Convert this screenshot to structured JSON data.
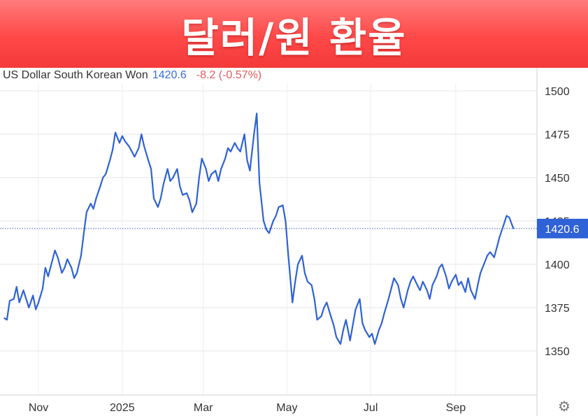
{
  "banner": {
    "title": "달러/원 환율"
  },
  "header": {
    "instrument": "US Dollar South Korean Won",
    "last_price": "1420.6",
    "change": "-8.2 (-0.57%)"
  },
  "colors": {
    "line": "#2f62d6",
    "banner": "#ff4f4f",
    "change_negative": "#e15a5a",
    "price_label_bg": "#2f62d6"
  },
  "settings": {
    "icon": "gear-icon",
    "glyph": "⚙"
  },
  "chart_data": {
    "type": "line",
    "title": "",
    "series": [
      {
        "name": "US Dollar South Korean Won",
        "points": [
          [
            "2024-10-07",
            1369
          ],
          [
            "2024-10-09",
            1368
          ],
          [
            "2024-10-11",
            1379
          ],
          [
            "2024-10-14",
            1380
          ],
          [
            "2024-10-16",
            1387
          ],
          [
            "2024-10-18",
            1378
          ],
          [
            "2024-10-21",
            1385
          ],
          [
            "2024-10-23",
            1380
          ],
          [
            "2024-10-25",
            1375
          ],
          [
            "2024-10-28",
            1382
          ],
          [
            "2024-10-30",
            1374
          ],
          [
            "2024-11-01",
            1378
          ],
          [
            "2024-11-04",
            1386
          ],
          [
            "2024-11-06",
            1398
          ],
          [
            "2024-11-08",
            1393
          ],
          [
            "2024-11-11",
            1402
          ],
          [
            "2024-11-13",
            1408
          ],
          [
            "2024-11-15",
            1404
          ],
          [
            "2024-11-18",
            1395
          ],
          [
            "2024-11-20",
            1398
          ],
          [
            "2024-11-22",
            1403
          ],
          [
            "2024-11-25",
            1398
          ],
          [
            "2024-11-27",
            1392
          ],
          [
            "2024-11-29",
            1395
          ],
          [
            "2024-12-02",
            1405
          ],
          [
            "2024-12-04",
            1418
          ],
          [
            "2024-12-06",
            1430
          ],
          [
            "2024-12-09",
            1435
          ],
          [
            "2024-12-11",
            1432
          ],
          [
            "2024-12-13",
            1438
          ],
          [
            "2024-12-16",
            1445
          ],
          [
            "2024-12-18",
            1450
          ],
          [
            "2024-12-20",
            1452
          ],
          [
            "2024-12-23",
            1460
          ],
          [
            "2024-12-25",
            1466
          ],
          [
            "2024-12-27",
            1476
          ],
          [
            "2024-12-30",
            1470
          ],
          [
            "2025-01-01",
            1474
          ],
          [
            "2025-01-03",
            1471
          ],
          [
            "2025-01-06",
            1468
          ],
          [
            "2025-01-08",
            1465
          ],
          [
            "2025-01-10",
            1462
          ],
          [
            "2025-01-13",
            1467
          ],
          [
            "2025-01-15",
            1475
          ],
          [
            "2025-01-17",
            1468
          ],
          [
            "2025-01-20",
            1460
          ],
          [
            "2025-01-22",
            1455
          ],
          [
            "2025-01-24",
            1438
          ],
          [
            "2025-01-27",
            1433
          ],
          [
            "2025-01-29",
            1438
          ],
          [
            "2025-01-31",
            1446
          ],
          [
            "2025-02-03",
            1455
          ],
          [
            "2025-02-05",
            1448
          ],
          [
            "2025-02-07",
            1450
          ],
          [
            "2025-02-10",
            1455
          ],
          [
            "2025-02-12",
            1445
          ],
          [
            "2025-02-14",
            1440
          ],
          [
            "2025-02-17",
            1441
          ],
          [
            "2025-02-19",
            1437
          ],
          [
            "2025-02-21",
            1430
          ],
          [
            "2025-02-24",
            1435
          ],
          [
            "2025-02-26",
            1450
          ],
          [
            "2025-02-28",
            1461
          ],
          [
            "2025-03-03",
            1455
          ],
          [
            "2025-03-05",
            1448
          ],
          [
            "2025-03-07",
            1452
          ],
          [
            "2025-03-10",
            1454
          ],
          [
            "2025-03-12",
            1448
          ],
          [
            "2025-03-14",
            1455
          ],
          [
            "2025-03-17",
            1461
          ],
          [
            "2025-03-19",
            1467
          ],
          [
            "2025-03-21",
            1465
          ],
          [
            "2025-03-24",
            1470
          ],
          [
            "2025-03-26",
            1467
          ],
          [
            "2025-03-28",
            1465
          ],
          [
            "2025-03-31",
            1475
          ],
          [
            "2025-04-02",
            1460
          ],
          [
            "2025-04-04",
            1454
          ],
          [
            "2025-04-07",
            1475
          ],
          [
            "2025-04-09",
            1487
          ],
          [
            "2025-04-11",
            1447
          ],
          [
            "2025-04-14",
            1425
          ],
          [
            "2025-04-16",
            1420
          ],
          [
            "2025-04-18",
            1418
          ],
          [
            "2025-04-21",
            1425
          ],
          [
            "2025-04-23",
            1428
          ],
          [
            "2025-04-25",
            1433
          ],
          [
            "2025-04-28",
            1434
          ],
          [
            "2025-04-30",
            1425
          ],
          [
            "2025-05-02",
            1405
          ],
          [
            "2025-05-05",
            1378
          ],
          [
            "2025-05-07",
            1390
          ],
          [
            "2025-05-09",
            1400
          ],
          [
            "2025-05-12",
            1405
          ],
          [
            "2025-05-14",
            1395
          ],
          [
            "2025-05-16",
            1390
          ],
          [
            "2025-05-19",
            1388
          ],
          [
            "2025-05-21",
            1380
          ],
          [
            "2025-05-23",
            1368
          ],
          [
            "2025-05-26",
            1370
          ],
          [
            "2025-05-28",
            1375
          ],
          [
            "2025-05-30",
            1378
          ],
          [
            "2025-06-02",
            1370
          ],
          [
            "2025-06-04",
            1365
          ],
          [
            "2025-06-06",
            1358
          ],
          [
            "2025-06-09",
            1354
          ],
          [
            "2025-06-11",
            1362
          ],
          [
            "2025-06-13",
            1368
          ],
          [
            "2025-06-16",
            1356
          ],
          [
            "2025-06-18",
            1365
          ],
          [
            "2025-06-20",
            1374
          ],
          [
            "2025-06-23",
            1380
          ],
          [
            "2025-06-25",
            1366
          ],
          [
            "2025-06-27",
            1362
          ],
          [
            "2025-06-30",
            1358
          ],
          [
            "2025-07-02",
            1360
          ],
          [
            "2025-07-04",
            1354
          ],
          [
            "2025-07-07",
            1362
          ],
          [
            "2025-07-09",
            1366
          ],
          [
            "2025-07-11",
            1372
          ],
          [
            "2025-07-14",
            1380
          ],
          [
            "2025-07-16",
            1386
          ],
          [
            "2025-07-18",
            1392
          ],
          [
            "2025-07-21",
            1388
          ],
          [
            "2025-07-23",
            1380
          ],
          [
            "2025-07-25",
            1375
          ],
          [
            "2025-07-28",
            1385
          ],
          [
            "2025-07-30",
            1390
          ],
          [
            "2025-08-01",
            1393
          ],
          [
            "2025-08-04",
            1388
          ],
          [
            "2025-08-06",
            1385
          ],
          [
            "2025-08-08",
            1390
          ],
          [
            "2025-08-11",
            1385
          ],
          [
            "2025-08-13",
            1380
          ],
          [
            "2025-08-15",
            1388
          ],
          [
            "2025-08-18",
            1393
          ],
          [
            "2025-08-20",
            1398
          ],
          [
            "2025-08-22",
            1400
          ],
          [
            "2025-08-25",
            1393
          ],
          [
            "2025-08-27",
            1386
          ],
          [
            "2025-08-29",
            1390
          ],
          [
            "2025-09-01",
            1394
          ],
          [
            "2025-09-03",
            1388
          ],
          [
            "2025-09-05",
            1390
          ],
          [
            "2025-09-08",
            1384
          ],
          [
            "2025-09-10",
            1392
          ],
          [
            "2025-09-12",
            1385
          ],
          [
            "2025-09-15",
            1380
          ],
          [
            "2025-09-17",
            1388
          ],
          [
            "2025-09-19",
            1395
          ],
          [
            "2025-09-22",
            1401
          ],
          [
            "2025-09-24",
            1405
          ],
          [
            "2025-09-26",
            1407
          ],
          [
            "2025-09-29",
            1404
          ],
          [
            "2025-10-01",
            1410
          ],
          [
            "2025-10-03",
            1416
          ],
          [
            "2025-10-06",
            1423
          ],
          [
            "2025-10-08",
            1428
          ],
          [
            "2025-10-10",
            1427
          ],
          [
            "2025-10-13",
            1420.6
          ]
        ]
      }
    ],
    "x_tick_labels": [
      "Nov",
      "2025",
      "Mar",
      "May",
      "Jul",
      "Sep"
    ],
    "x_tick_dates": [
      "2024-11-01",
      "2025-01-01",
      "2025-03-01",
      "2025-05-01",
      "2025-07-01",
      "2025-09-01"
    ],
    "y_ticks": [
      1350,
      1375,
      1400,
      1425,
      1450,
      1475,
      1500
    ],
    "ylim": [
      1330,
      1510
    ],
    "xlim": [
      "2024-10-07",
      "2025-10-22"
    ],
    "last_value_label": "1420.6",
    "reference_line_value": 1420.6,
    "y_axis_position": "right",
    "grid": true,
    "legend": "none"
  }
}
